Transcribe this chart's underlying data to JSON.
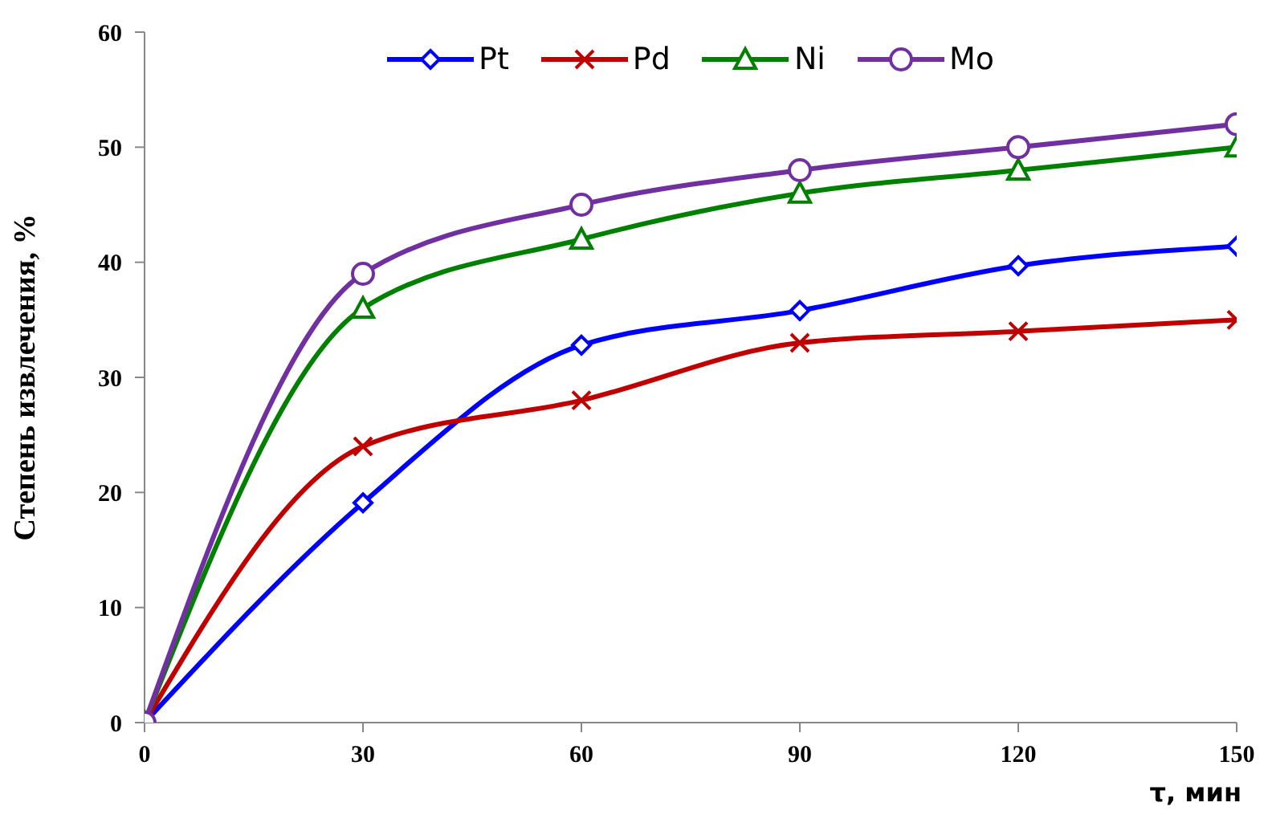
{
  "chart_data": {
    "type": "line",
    "xlabel": "τ, мин",
    "ylabel": "Степень извлечения, %",
    "x": [
      0,
      30,
      60,
      90,
      120,
      150
    ],
    "series": [
      {
        "name": "Pt",
        "color": "#0000ff",
        "marker": "diamond",
        "values": [
          0,
          19.1,
          32.8,
          35.8,
          39.7,
          41.4
        ]
      },
      {
        "name": "Pd",
        "color": "#c00000",
        "marker": "cross",
        "values": [
          0,
          24,
          28,
          33,
          34,
          35
        ]
      },
      {
        "name": "Ni",
        "color": "#008000",
        "marker": "triangle",
        "values": [
          0,
          36,
          42,
          46,
          48,
          50
        ]
      },
      {
        "name": "Mo",
        "color": "#7030a0",
        "marker": "circle",
        "values": [
          0,
          39,
          45,
          48,
          50,
          52
        ]
      }
    ],
    "xlim": [
      0,
      150
    ],
    "xticks": [
      0,
      30,
      60,
      90,
      120,
      150
    ],
    "ylim": [
      0,
      60
    ],
    "yticks": [
      0,
      10,
      20,
      30,
      40,
      50,
      60
    ],
    "grid": false,
    "legend": "top",
    "line_style": "solid"
  }
}
